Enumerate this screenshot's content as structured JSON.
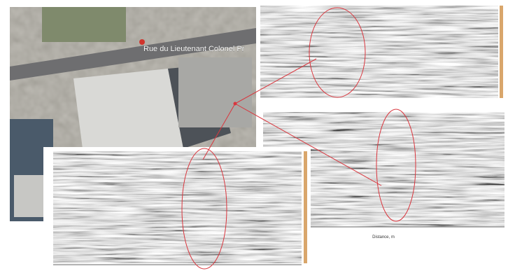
{
  "map": {
    "street_label": "Rue du Lieutenant Colonel Pr"
  },
  "radargram": {
    "x_axis_label": "Distance, m"
  }
}
